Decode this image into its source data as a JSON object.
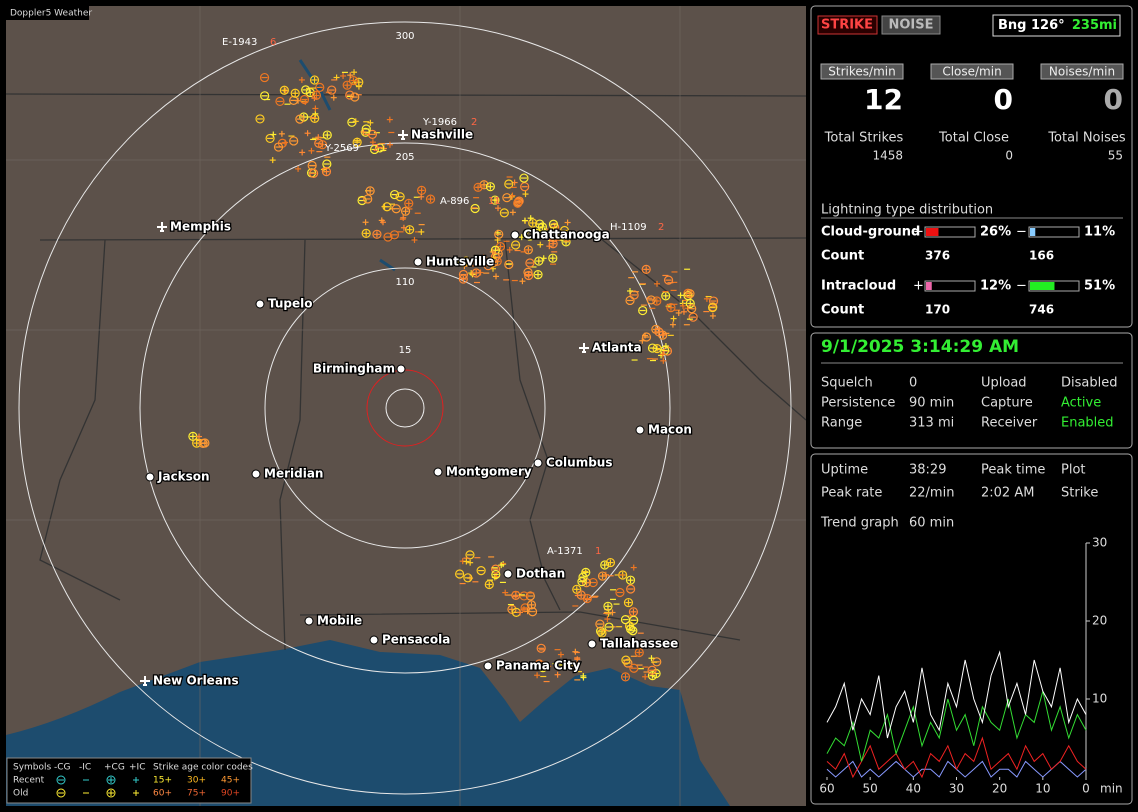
{
  "app_title": "Doppler5 Weather",
  "map": {
    "ring_labels": [
      "300",
      "205",
      "110",
      "15"
    ],
    "cities": [
      "Nashville",
      "Memphis",
      "Chattanooga",
      "Huntsville",
      "Tupelo",
      "Atlanta",
      "Birmingham",
      "Macon",
      "Jackson",
      "Meridian",
      "Montgomery",
      "Columbus",
      "Dothan",
      "Mobile",
      "Pensacola",
      "Tallahassee",
      "Panama City",
      "New Orleans"
    ],
    "storm_cells": [
      {
        "id": "E-1943",
        "count": "6"
      },
      {
        "id": "Y-1966",
        "count": "2"
      },
      {
        "id": "Y-2569",
        "count": "2"
      },
      {
        "id": "A-896",
        "count": "11"
      },
      {
        "id": "H-1109",
        "count": "2"
      },
      {
        "id": "A-1371",
        "count": "1"
      }
    ]
  },
  "legend": {
    "symbols_label": "Symbols",
    "types": [
      "-CG",
      "-IC",
      "+CG",
      "+IC"
    ],
    "age_label": "Strike age color codes",
    "rows": [
      {
        "label": "Recent",
        "ages": [
          "15+",
          "30+",
          "45+"
        ]
      },
      {
        "label": "Old",
        "ages": [
          "60+",
          "75+",
          "90+"
        ]
      }
    ]
  },
  "panel": {
    "modes": [
      "STRIKE",
      "NOISE"
    ],
    "bearing": "Bng 126°",
    "distance": "235mi",
    "rates": [
      {
        "label": "Strikes/min",
        "value": 12,
        "total_label": "Total Strikes",
        "total": 1458
      },
      {
        "label": "Close/min",
        "value": 0,
        "total_label": "Total Close",
        "total": 0
      },
      {
        "label": "Noises/min",
        "value": 0,
        "total_label": "Total Noises",
        "total": 55
      }
    ],
    "distribution": {
      "title": "Lightning type distribution",
      "rows": [
        {
          "label": "Cloud-ground",
          "pos_sign": "+",
          "pos_pct": {
            "value": 26,
            "label": "26%"
          },
          "neg_sign": "−",
          "neg_pct": {
            "value": 11,
            "label": "11%"
          },
          "count_label": "Count",
          "pos_count": 376,
          "neg_count": 166
        },
        {
          "label": "Intracloud",
          "pos_sign": "+",
          "pos_pct": {
            "value": 12,
            "label": "12%"
          },
          "neg_sign": "−",
          "neg_pct": {
            "value": 51,
            "label": "51%"
          },
          "count_label": "Count",
          "pos_count": 170,
          "neg_count": 746
        }
      ]
    }
  },
  "status": {
    "datetime": "9/1/2025 3:14:29 AM",
    "settings": [
      {
        "label": "Squelch",
        "value": "0"
      },
      {
        "label": "Persistence",
        "value": "90 min"
      },
      {
        "label": "Range",
        "value": "313 mi"
      },
      {
        "label": "Upload",
        "value": "Disabled"
      },
      {
        "label": "Capture",
        "value": "Active"
      },
      {
        "label": "Receiver",
        "value": "Enabled"
      }
    ]
  },
  "stats": {
    "uptime_label": "Uptime",
    "uptime": "38:29",
    "peak_time_label": "Peak time",
    "peak_time": "2:02 AM",
    "plot_label": "Plot",
    "plot": "Strike",
    "peak_rate_label": "Peak rate",
    "peak_rate": "22/min",
    "trend_label": "Trend graph",
    "trend": "60 min"
  },
  "chart_data": {
    "type": "line",
    "ylim": [
      0,
      30
    ],
    "yticks": [
      30,
      20,
      10
    ],
    "xlim": [
      60,
      0
    ],
    "xticks": [
      60,
      50,
      40,
      30,
      20,
      10,
      0
    ],
    "x_unit": "min",
    "x": [
      60,
      58,
      56,
      54,
      52,
      50,
      48,
      46,
      44,
      42,
      40,
      38,
      36,
      34,
      32,
      30,
      28,
      26,
      24,
      22,
      20,
      18,
      16,
      14,
      12,
      10,
      8,
      6,
      4,
      2,
      0
    ],
    "series": [
      {
        "color": "#ffffff",
        "values": [
          7,
          9,
          12,
          6,
          10,
          8,
          13,
          5,
          9,
          11,
          7,
          14,
          8,
          6,
          12,
          9,
          15,
          10,
          7,
          13,
          16,
          9,
          12,
          8,
          15,
          11,
          9,
          14,
          7,
          10,
          8
        ]
      },
      {
        "color": "#33dd33",
        "values": [
          3,
          5,
          4,
          7,
          2,
          6,
          5,
          8,
          3,
          6,
          9,
          4,
          7,
          5,
          10,
          6,
          8,
          4,
          9,
          7,
          6,
          10,
          5,
          8,
          7,
          11,
          6,
          9,
          5,
          8,
          6
        ]
      },
      {
        "color": "#ee2222",
        "values": [
          2,
          1,
          3,
          0,
          2,
          4,
          1,
          2,
          3,
          1,
          2,
          0,
          3,
          2,
          4,
          1,
          3,
          2,
          5,
          1,
          2,
          3,
          1,
          4,
          2,
          3,
          1,
          2,
          4,
          2,
          1
        ]
      },
      {
        "color": "#8899ff",
        "values": [
          1,
          0,
          1,
          2,
          0,
          1,
          0,
          1,
          2,
          1,
          0,
          1,
          1,
          0,
          2,
          1,
          0,
          1,
          2,
          0,
          1,
          1,
          0,
          2,
          1,
          0,
          1,
          2,
          1,
          0,
          1
        ]
      }
    ]
  }
}
